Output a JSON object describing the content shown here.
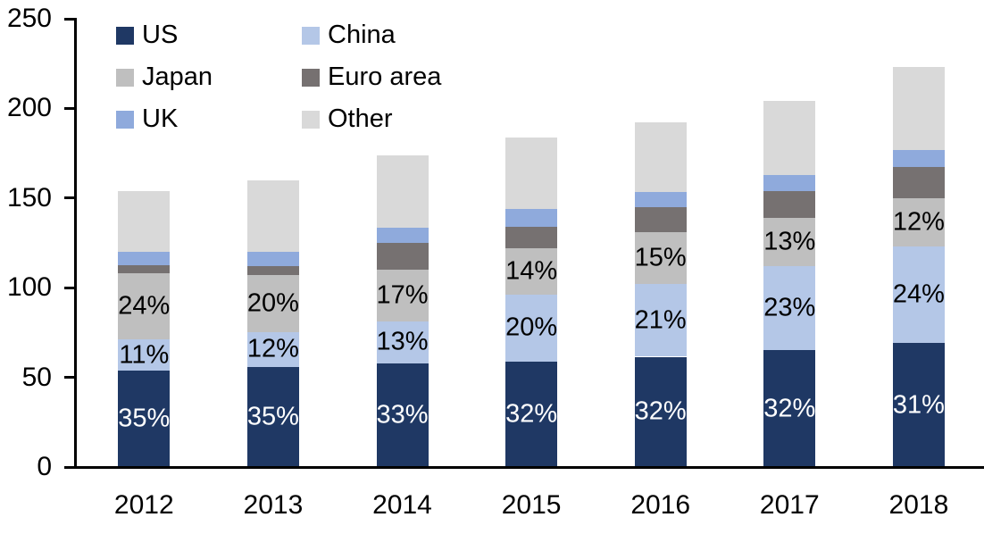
{
  "chart_data": {
    "type": "bar",
    "stacked": true,
    "title": "",
    "xlabel": "",
    "ylabel": "",
    "categories": [
      "2012",
      "2013",
      "2014",
      "2015",
      "2016",
      "2017",
      "2018"
    ],
    "stack_order_bottom_to_top": [
      "US",
      "China",
      "Japan",
      "Euro area",
      "UK",
      "Other"
    ],
    "series": [
      {
        "name": "US",
        "color": "#1F3864",
        "values": [
          54,
          56,
          58,
          59,
          61.5,
          65,
          69
        ],
        "labels": [
          "35%",
          "35%",
          "33%",
          "32%",
          "32%",
          "32%",
          "31%"
        ],
        "label_color": "#FFFFFF"
      },
      {
        "name": "China",
        "color": "#B4C7E7",
        "values": [
          17,
          19,
          23,
          37,
          40.5,
          47,
          54
        ],
        "labels": [
          "11%",
          "12%",
          "13%",
          "20%",
          "21%",
          "23%",
          "24%"
        ],
        "label_color": "#000000"
      },
      {
        "name": "Japan",
        "color": "#BFBFBF",
        "values": [
          37,
          32,
          29,
          26,
          29,
          27,
          27
        ],
        "labels": [
          "24%",
          "20%",
          "17%",
          "14%",
          "15%",
          "13%",
          "12%"
        ],
        "label_color": "#000000"
      },
      {
        "name": "Euro area",
        "color": "#767171",
        "values": [
          4.5,
          5,
          15,
          12,
          14,
          15,
          17.5
        ],
        "labels": null,
        "label_color": null
      },
      {
        "name": "UK",
        "color": "#8FAADC",
        "values": [
          7.5,
          8,
          8.5,
          10,
          8.5,
          9,
          9.5
        ],
        "labels": null,
        "label_color": null
      },
      {
        "name": "Other",
        "color": "#D9D9D9",
        "values": [
          34,
          40,
          40.5,
          40,
          38.5,
          41,
          46
        ],
        "labels": null,
        "label_color": null
      }
    ],
    "bar_totals": [
      154,
      160,
      174,
      184,
      192,
      204,
      223
    ],
    "y_axis": {
      "min": 0,
      "max": 250,
      "tick_interval": 50,
      "tick_labels": [
        "0",
        "50",
        "100",
        "150",
        "200",
        "250"
      ]
    },
    "x_axis": {
      "tick_labels": [
        "2012",
        "2013",
        "2014",
        "2015",
        "2016",
        "2017",
        "2018"
      ]
    },
    "legend": {
      "position": "top-left",
      "columns": 2,
      "row_major_order": [
        "US",
        "China",
        "Japan",
        "Euro area",
        "UK",
        "Other"
      ]
    },
    "axis_color": "#000000",
    "background_color": "#FFFFFF"
  }
}
